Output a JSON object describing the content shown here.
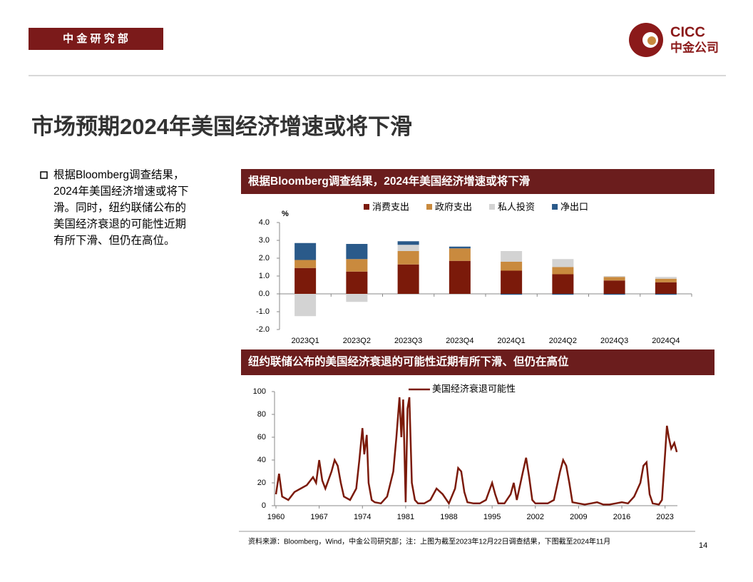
{
  "header": {
    "department": "中 金 研 究 部",
    "logo_en": "CICC",
    "logo_cn": "中金公司"
  },
  "title": "市场预期2024年美国经济增速或将下滑",
  "bullet": {
    "lines": [
      "根据Bloomberg调查结果，",
      "2024年美国经济增速或将下",
      "滑。同时，纽约联储公布的",
      "美国经济衰退的可能性近期",
      "有所下滑、但仍在高位。"
    ]
  },
  "chart_data": [
    {
      "type": "stacked_bar",
      "title": "根据Bloomberg调查结果，2024年美国经济增速或将下滑",
      "y_label": "%",
      "categories": [
        "2023Q1",
        "2023Q2",
        "2023Q3",
        "2023Q4",
        "2024Q1",
        "2024Q2",
        "2024Q3",
        "2024Q4"
      ],
      "series": [
        {
          "name": "消费支出",
          "color": "#7b1a0a",
          "values": [
            1.45,
            1.25,
            1.65,
            1.85,
            1.3,
            1.1,
            0.75,
            0.65
          ]
        },
        {
          "name": "政府支出",
          "color": "#c98a3e",
          "values": [
            0.45,
            0.7,
            0.75,
            0.7,
            0.5,
            0.4,
            0.2,
            0.2
          ]
        },
        {
          "name": "私人投资",
          "color": "#d3d3d3",
          "values": [
            -1.25,
            -0.45,
            0.35,
            0,
            0.6,
            0.45,
            0.05,
            0.1
          ]
        },
        {
          "name": "净出口",
          "color": "#2a5a8a",
          "values": [
            0.95,
            0.85,
            0.2,
            0.1,
            -0.05,
            -0.05,
            -0.05,
            -0.05
          ]
        }
      ],
      "ylim": [
        -2,
        4
      ],
      "yticks": [
        {
          "value": -2,
          "label": "-2.0"
        },
        {
          "value": -1,
          "label": "-1.0"
        },
        {
          "value": 0,
          "label": "0.0"
        },
        {
          "value": 1,
          "label": "1.0"
        },
        {
          "value": 2,
          "label": "2.0"
        },
        {
          "value": 3,
          "label": "3.0"
        },
        {
          "value": 4,
          "label": "4.0"
        }
      ],
      "legend": "top"
    },
    {
      "type": "line",
      "title": "纽约联储公布的美国经济衰退的可能性近期有所下滑、但仍在高位",
      "x": [
        1960,
        1960.5,
        1961,
        1962,
        1963,
        1964,
        1965,
        1966,
        1966.5,
        1967,
        1967.5,
        1968,
        1969,
        1969.5,
        1970,
        1970.5,
        1971,
        1972,
        1973,
        1973.5,
        1974,
        1974.3,
        1974.7,
        1975,
        1975.5,
        1976,
        1977,
        1978,
        1979,
        1979.5,
        1980,
        1980.3,
        1980.6,
        1981,
        1981.3,
        1981.6,
        1982,
        1982.5,
        1983,
        1984,
        1985,
        1986,
        1987,
        1988,
        1989,
        1989.5,
        1990,
        1990.5,
        1991,
        1992,
        1993,
        1994,
        1995,
        1995.5,
        1996,
        1997,
        1998,
        1998.5,
        1999,
        2000,
        2000.5,
        2001,
        2001.5,
        2002,
        2003,
        2004,
        2005,
        2006,
        2006.5,
        2007,
        2007.5,
        2008,
        2009,
        2010,
        2011,
        2012,
        2013,
        2014,
        2015,
        2016,
        2017,
        2018,
        2019,
        2019.5,
        2020,
        2020.5,
        2021,
        2022,
        2022.5,
        2023,
        2023.3,
        2023.6,
        2024,
        2024.5,
        2024.9
      ],
      "series": [
        {
          "name": "美国经济衰退可能性",
          "color": "#7b1a0a",
          "values": [
            10,
            28,
            8,
            5,
            12,
            15,
            18,
            25,
            20,
            40,
            22,
            15,
            30,
            40,
            35,
            20,
            8,
            5,
            15,
            40,
            68,
            45,
            62,
            20,
            5,
            3,
            2,
            8,
            30,
            60,
            95,
            60,
            93,
            3,
            85,
            95,
            20,
            5,
            2,
            2,
            5,
            15,
            10,
            2,
            15,
            33,
            30,
            12,
            3,
            2,
            2,
            5,
            20,
            10,
            2,
            2,
            10,
            20,
            5,
            30,
            42,
            25,
            5,
            2,
            2,
            2,
            5,
            30,
            40,
            35,
            20,
            3,
            2,
            1,
            2,
            3,
            1,
            1,
            2,
            3,
            2,
            8,
            20,
            35,
            38,
            10,
            2,
            1,
            5,
            45,
            70,
            60,
            50,
            55,
            47
          ]
        }
      ],
      "xlim": [
        1960,
        2025
      ],
      "xticks": [
        1960,
        1967,
        1974,
        1981,
        1988,
        1995,
        2002,
        2009,
        2016,
        2023
      ],
      "ylim": [
        0,
        100
      ],
      "yticks": [
        0,
        20,
        40,
        60,
        80,
        100
      ],
      "legend": "top"
    }
  ],
  "footnote": "资料来源：Bloomberg，Wind，中金公司研究部；注：上图为截至2023年12月22日调查结果，下图截至2024年11月",
  "page_number": "14"
}
